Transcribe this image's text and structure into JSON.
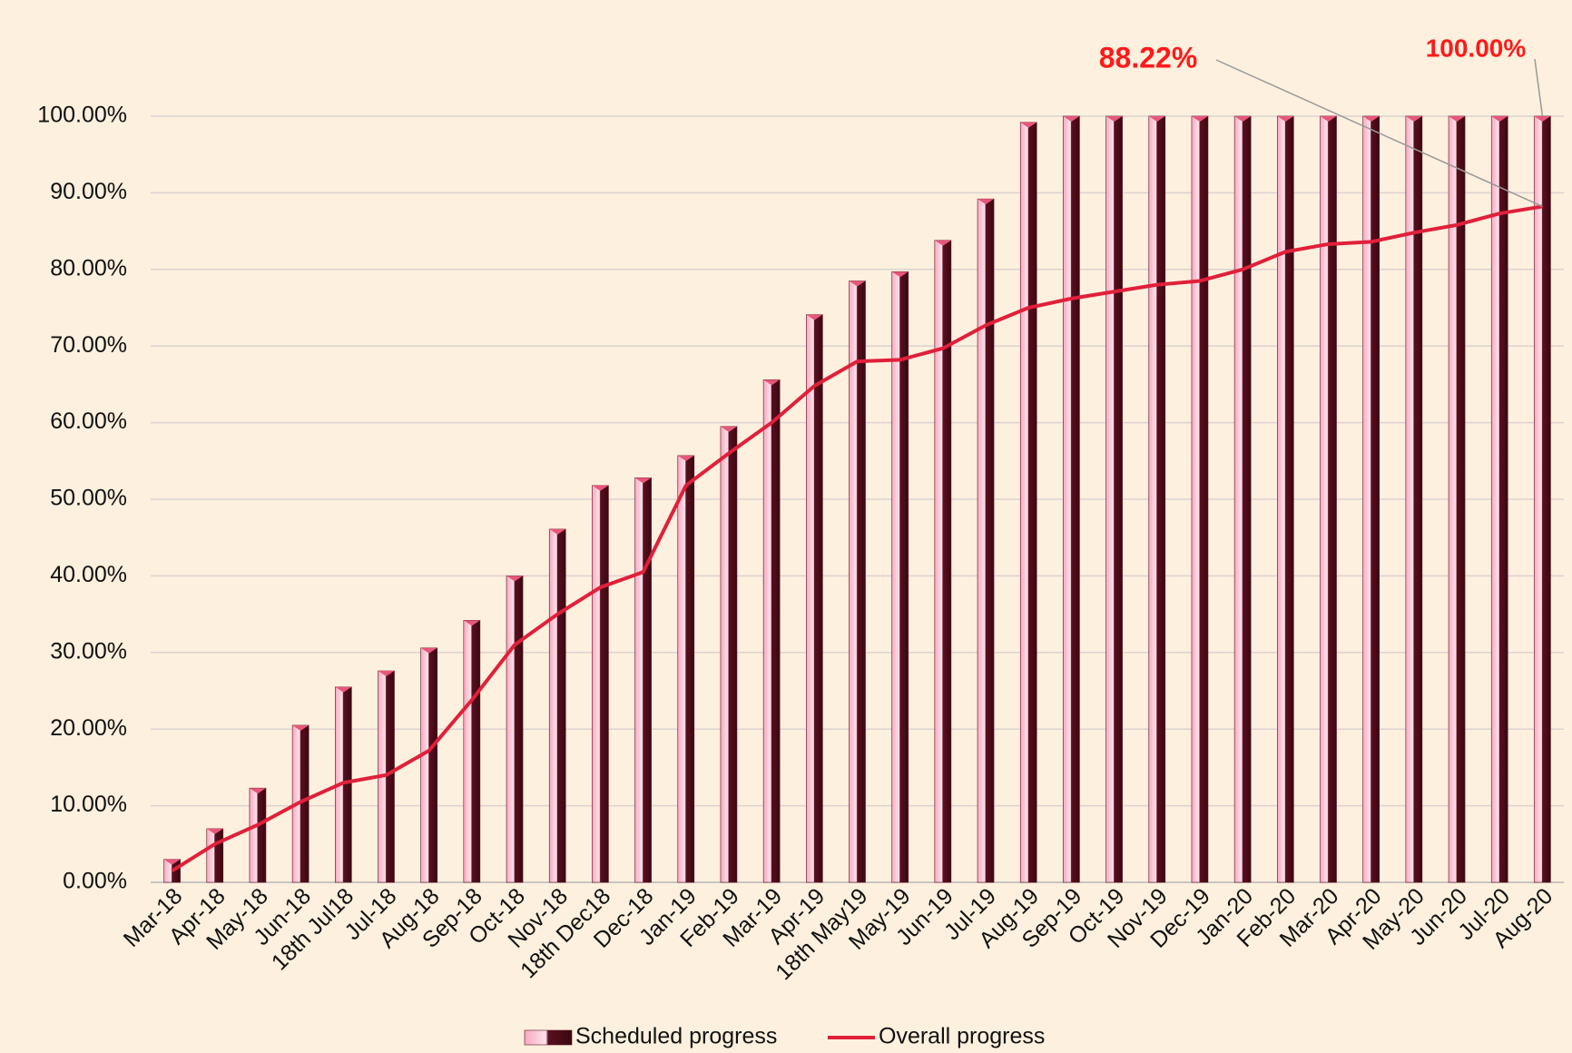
{
  "chart_data": {
    "type": "bar_line",
    "categories": [
      "Mar-18",
      "Apr-18",
      "May-18",
      "Jun-18",
      "18th Jul18",
      "Jul-18",
      "Aug-18",
      "Sep-18",
      "Oct-18",
      "Nov-18",
      "18th Dec18",
      "Dec-18",
      "Jan-19",
      "Feb-19",
      "Mar-19",
      "Apr-19",
      "18th May19",
      "May-19",
      "Jun-19",
      "Jul-19",
      "Aug-19",
      "Sep-19",
      "Oct-19",
      "Nov-19",
      "Dec-19",
      "Jan-20",
      "Feb-20",
      "Mar-20",
      "Apr-20",
      "May-20",
      "Jun-20",
      "Jul-20",
      "Aug-20"
    ],
    "series": [
      {
        "name": "Scheduled progress",
        "type": "bar",
        "color": "#5a0f1e",
        "values": [
          3,
          7,
          12.3,
          20.5,
          25.5,
          27.6,
          30.6,
          34.2,
          40,
          46.1,
          51.8,
          52.8,
          55.7,
          59.5,
          65.6,
          74.1,
          78.5,
          79.7,
          83.8,
          89.2,
          99.2,
          100,
          100,
          100,
          100,
          100,
          100,
          100,
          100,
          100,
          100,
          100,
          100
        ],
        "value_labels": [
          null,
          null,
          null,
          null,
          null,
          null,
          null,
          null,
          null,
          null,
          null,
          null,
          null,
          null,
          null,
          null,
          null,
          null,
          null,
          null,
          null,
          null,
          null,
          null,
          null,
          null,
          null,
          null,
          null,
          null,
          null,
          null,
          "100.00%"
        ]
      },
      {
        "name": "Overall progress",
        "type": "line",
        "color": "#e0203a",
        "values": [
          1.5,
          5,
          7.5,
          10.5,
          13,
          14,
          17.2,
          23.8,
          31,
          35,
          38.5,
          40.5,
          51.8,
          56,
          60,
          64.8,
          68,
          68.2,
          69.7,
          72.7,
          75,
          76.2,
          77.1,
          78,
          78.5,
          80,
          82.3,
          83.3,
          83.6,
          84.8,
          85.8,
          87.3,
          88.22
        ],
        "value_labels": [
          null,
          null,
          null,
          null,
          null,
          null,
          null,
          null,
          null,
          null,
          null,
          null,
          null,
          null,
          null,
          null,
          null,
          null,
          null,
          null,
          null,
          null,
          null,
          null,
          null,
          null,
          null,
          null,
          null,
          null,
          null,
          null,
          "88.22%"
        ]
      }
    ],
    "ylim": [
      0,
      100
    ],
    "yticks": [
      {
        "value": 0,
        "label": "0.00%"
      },
      {
        "value": 10,
        "label": "10.00%"
      },
      {
        "value": 20,
        "label": "20.00%"
      },
      {
        "value": 30,
        "label": "30.00%"
      },
      {
        "value": 40,
        "label": "40.00%"
      },
      {
        "value": 50,
        "label": "50.00%"
      },
      {
        "value": 60,
        "label": "60.00%"
      },
      {
        "value": 70,
        "label": "70.00%"
      },
      {
        "value": 80,
        "label": "80.00%"
      },
      {
        "value": 90,
        "label": "90.00%"
      },
      {
        "value": 100,
        "label": "100.00%"
      }
    ],
    "grid": true,
    "legend": "bottom"
  }
}
